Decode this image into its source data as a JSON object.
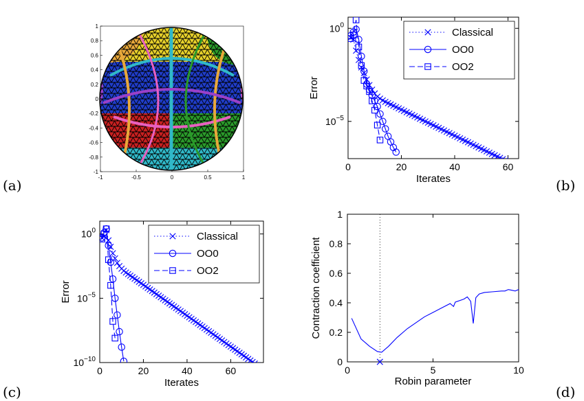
{
  "figure": {
    "panel_labels": {
      "a": "(a)",
      "b": "(b)",
      "c": "(c)",
      "d": "(d)"
    }
  },
  "colors": {
    "series": "#0000ff",
    "axis": "#000000",
    "sphere_patches": [
      "#1f3cc8",
      "#c82020",
      "#e6d02a",
      "#2a9a2a",
      "#9a40c8",
      "#e8a83a",
      "#30b8c8",
      "#e860c0"
    ]
  },
  "chart_data": [
    {
      "id": "a",
      "type": "other",
      "description_visible": "sphere mesh subdomain decomposition",
      "xlim": [
        -1,
        1
      ],
      "ylim": [
        -1,
        1
      ],
      "x_ticks": [
        "-1",
        "-0.5",
        "0",
        "0.5",
        "1"
      ],
      "y_ticks": [
        "1",
        "0.8",
        "0.6",
        "0.4",
        "0.2",
        "0",
        "-0.2",
        "-0.4",
        "-0.6",
        "-0.8",
        "-1"
      ]
    },
    {
      "id": "b",
      "type": "line",
      "xlabel": "Iterates",
      "ylabel": "Error",
      "xlim": [
        0,
        64
      ],
      "ylog": true,
      "ylim_log10": [
        -7,
        0.6
      ],
      "x_ticks": [
        "0",
        "20",
        "40",
        "60"
      ],
      "y_ticks": [
        {
          "base": "10",
          "exp": "0",
          "log": 0
        },
        {
          "base": "10",
          "exp": "−5",
          "log": -5
        }
      ],
      "legend": {
        "position": "top-right",
        "entries": [
          "Classical",
          "OO0",
          "OO2"
        ]
      },
      "series": [
        {
          "name": "Classical",
          "style": "dotted",
          "marker": "x",
          "x": [
            1,
            2,
            3,
            4,
            5,
            6,
            7,
            8,
            9,
            10,
            11,
            12,
            13,
            14,
            15,
            16,
            17,
            18,
            19,
            20,
            21,
            22,
            23,
            24,
            25,
            26,
            27,
            28,
            29,
            30,
            31,
            32,
            33,
            34,
            35,
            36,
            37,
            38,
            39,
            40,
            41,
            42,
            43,
            44,
            45,
            46,
            47,
            48,
            49,
            50,
            51,
            52,
            53,
            54,
            55,
            56,
            57,
            58,
            59,
            60,
            61,
            62,
            63
          ],
          "log10y": [
            -0.5,
            -0.6,
            -1.2,
            -1.7,
            -2.1,
            -2.4,
            -2.75,
            -3.05,
            -3.3,
            -3.5,
            -3.67,
            -3.78,
            -3.87,
            -3.95,
            -4.02,
            -4.09,
            -4.16,
            -4.23,
            -4.3,
            -4.37,
            -4.44,
            -4.51,
            -4.58,
            -4.65,
            -4.72,
            -4.79,
            -4.86,
            -4.93,
            -5.0,
            -5.07,
            -5.14,
            -5.21,
            -5.28,
            -5.35,
            -5.42,
            -5.49,
            -5.56,
            -5.63,
            -5.7,
            -5.77,
            -5.84,
            -5.91,
            -5.98,
            -6.05,
            -6.12,
            -6.19,
            -6.26,
            -6.33,
            -6.4,
            -6.47,
            -6.54,
            -6.61,
            -6.68,
            -6.75,
            -6.82,
            -6.89,
            -6.96,
            -7.03,
            -7.1,
            -7.17,
            -7.24,
            -7.31,
            -7.38
          ]
        },
        {
          "name": "OO0",
          "style": "solid",
          "marker": "o",
          "x": [
            1,
            2,
            3,
            4,
            5,
            6,
            7,
            8,
            9,
            10,
            11,
            12,
            13,
            14,
            15,
            16,
            17,
            18
          ],
          "log10y": [
            -0.4,
            -0.2,
            -0.05,
            -0.6,
            -1.5,
            -2.3,
            -3.0,
            -3.3,
            -3.6,
            -3.9,
            -4.2,
            -4.6,
            -5.0,
            -5.4,
            -5.8,
            -6.1,
            -6.4,
            -6.65
          ]
        },
        {
          "name": "OO2",
          "style": "dashed",
          "marker": "s",
          "x": [
            1,
            2,
            3,
            4,
            5,
            6,
            7,
            8,
            9,
            10,
            11,
            12
          ],
          "log10y": [
            -0.55,
            -0.35,
            0.45,
            -1.0,
            -2.0,
            -2.8,
            -3.1,
            -3.4,
            -3.9,
            -4.4,
            -5.2,
            -6.0
          ]
        }
      ]
    },
    {
      "id": "c",
      "type": "line",
      "xlabel": "Iterates",
      "ylabel": "Error",
      "xlim": [
        0,
        75
      ],
      "ylog": true,
      "ylim_log10": [
        -10,
        1
      ],
      "x_ticks": [
        "0",
        "20",
        "40",
        "60"
      ],
      "y_ticks": [
        {
          "base": "10",
          "exp": "0",
          "log": 0
        },
        {
          "base": "10",
          "exp": "−5",
          "log": -5
        },
        {
          "base": "10",
          "exp": "−10",
          "log": -10
        }
      ],
      "legend": {
        "position": "top-right",
        "entries": [
          "Classical",
          "OO0",
          "OO2"
        ]
      },
      "series": [
        {
          "name": "Classical",
          "style": "dotted",
          "marker": "x",
          "x": [
            1,
            2,
            3,
            4,
            5,
            6,
            7,
            8,
            9,
            10,
            11,
            12,
            13,
            14,
            15,
            16,
            17,
            18,
            19,
            20,
            21,
            22,
            23,
            24,
            25,
            26,
            27,
            28,
            29,
            30,
            31,
            32,
            33,
            34,
            35,
            36,
            37,
            38,
            39,
            40,
            41,
            42,
            43,
            44,
            45,
            46,
            47,
            48,
            49,
            50,
            51,
            52,
            53,
            54,
            55,
            56,
            57,
            58,
            59,
            60,
            61,
            62,
            63,
            64,
            65,
            66,
            67,
            68,
            69,
            70,
            71,
            72,
            73,
            74
          ],
          "log10y": [
            -0.3,
            -0.2,
            0.3,
            -0.5,
            -1.0,
            -1.5,
            -1.9,
            -2.25,
            -2.5,
            -2.7,
            -2.87,
            -3.0,
            -3.12,
            -3.24,
            -3.36,
            -3.48,
            -3.6,
            -3.72,
            -3.84,
            -3.96,
            -4.08,
            -4.2,
            -4.32,
            -4.44,
            -4.56,
            -4.68,
            -4.8,
            -4.92,
            -5.04,
            -5.16,
            -5.28,
            -5.4,
            -5.52,
            -5.64,
            -5.76,
            -5.88,
            -6.0,
            -6.12,
            -6.24,
            -6.36,
            -6.48,
            -6.6,
            -6.72,
            -6.84,
            -6.96,
            -7.08,
            -7.2,
            -7.32,
            -7.44,
            -7.56,
            -7.68,
            -7.8,
            -7.92,
            -8.04,
            -8.16,
            -8.28,
            -8.4,
            -8.52,
            -8.64,
            -8.76,
            -8.88,
            -9.0,
            -9.12,
            -9.24,
            -9.36,
            -9.48,
            -9.6,
            -9.72,
            -9.84,
            -9.96,
            -10.08,
            -10.2,
            -10.32,
            -10.44
          ]
        },
        {
          "name": "OO0",
          "style": "solid",
          "marker": "o",
          "x": [
            1,
            2,
            3,
            4,
            5,
            6,
            7,
            8,
            9,
            10,
            11
          ],
          "log10y": [
            -0.3,
            0.1,
            0.4,
            -0.9,
            -2.2,
            -3.5,
            -5.0,
            -6.3,
            -7.6,
            -8.8,
            -9.9
          ]
        },
        {
          "name": "OO2",
          "style": "dashed",
          "marker": "s",
          "x": [
            1,
            2,
            3,
            4,
            5,
            6,
            7
          ],
          "log10y": [
            -0.4,
            0.0,
            0.4,
            -2.0,
            -4.0,
            -6.8,
            -8.1
          ]
        }
      ]
    },
    {
      "id": "d",
      "type": "line",
      "xlabel": "Robin parameter",
      "ylabel": "Contraction coefficient",
      "xlim": [
        0,
        10
      ],
      "ylim": [
        0,
        1
      ],
      "x_ticks": [
        "0",
        "5",
        "10"
      ],
      "y_ticks": [
        "0",
        "0.2",
        "0.4",
        "0.6",
        "0.8",
        "1"
      ],
      "vline_x": 1.9,
      "marker_point": {
        "x": 1.9,
        "y": 0
      },
      "series": [
        {
          "style": "solid",
          "x": [
            0.25,
            0.8,
            1.3,
            1.75,
            2.0,
            2.4,
            2.9,
            3.5,
            4.0,
            4.5,
            5.0,
            5.5,
            6.0,
            6.2,
            6.3,
            6.8,
            7.0,
            7.2,
            7.35,
            7.5,
            7.7,
            8.0,
            8.5,
            9.0,
            9.2,
            9.4,
            9.6,
            9.8,
            10.0
          ],
          "y": [
            0.295,
            0.155,
            0.105,
            0.07,
            0.065,
            0.105,
            0.165,
            0.225,
            0.265,
            0.305,
            0.335,
            0.365,
            0.395,
            0.375,
            0.405,
            0.425,
            0.44,
            0.41,
            0.26,
            0.435,
            0.46,
            0.47,
            0.475,
            0.48,
            0.48,
            0.49,
            0.485,
            0.48,
            0.49
          ]
        }
      ]
    }
  ]
}
